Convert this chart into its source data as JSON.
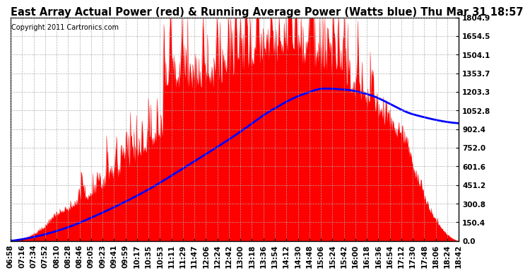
{
  "title": "East Array Actual Power (red) & Running Average Power (Watts blue) Thu Mar 31 18:57",
  "copyright": "Copyright 2011 Cartronics.com",
  "ylabel_ticks": [
    0.0,
    150.4,
    300.8,
    451.2,
    601.6,
    752.0,
    902.4,
    1052.8,
    1203.3,
    1353.7,
    1504.1,
    1654.5,
    1804.9
  ],
  "ymax": 1804.9,
  "ymin": 0.0,
  "bar_color": "red",
  "line_color": "blue",
  "background_color": "#ffffff",
  "grid_color": "#aaaaaa",
  "title_fontsize": 10.5,
  "copyright_fontsize": 7,
  "tick_fontsize": 7.5,
  "x_labels": [
    "06:58",
    "07:16",
    "07:34",
    "07:52",
    "08:10",
    "08:28",
    "08:46",
    "09:05",
    "09:23",
    "09:41",
    "09:59",
    "10:17",
    "10:35",
    "10:53",
    "11:11",
    "11:29",
    "11:47",
    "12:06",
    "12:24",
    "12:42",
    "13:00",
    "13:18",
    "13:36",
    "13:54",
    "14:12",
    "14:30",
    "14:48",
    "15:06",
    "15:24",
    "15:42",
    "16:00",
    "16:18",
    "16:36",
    "16:54",
    "17:12",
    "17:30",
    "17:48",
    "18:06",
    "18:24",
    "18:42"
  ],
  "blue_control_x": [
    0.0,
    0.05,
    0.12,
    0.2,
    0.3,
    0.4,
    0.5,
    0.58,
    0.65,
    0.7,
    0.75,
    0.8,
    0.9,
    1.0
  ],
  "blue_control_y": [
    0.0,
    30,
    100,
    220,
    400,
    620,
    850,
    1050,
    1180,
    1230,
    1220,
    1180,
    1020,
    950
  ]
}
